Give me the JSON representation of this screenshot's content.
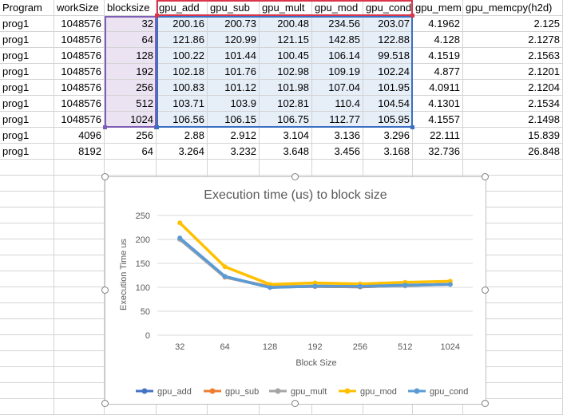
{
  "sheet": {
    "headers": [
      "Program",
      "workSize",
      "blocksize",
      "gpu_add",
      "gpu_sub",
      "gpu_mult",
      "gpu_mod",
      "gpu_cond",
      "gpu_mem",
      "gpu_memcpy(h2d)"
    ],
    "rows": [
      [
        "prog1",
        "1048576",
        "32",
        "200.16",
        "200.73",
        "200.48",
        "234.56",
        "203.07",
        "4.1962",
        "2.125"
      ],
      [
        "prog1",
        "1048576",
        "64",
        "121.86",
        "120.99",
        "121.15",
        "142.85",
        "122.88",
        "4.128",
        "2.1278"
      ],
      [
        "prog1",
        "1048576",
        "128",
        "100.22",
        "101.44",
        "100.45",
        "106.14",
        "99.518",
        "4.1519",
        "2.1563"
      ],
      [
        "prog1",
        "1048576",
        "192",
        "102.18",
        "101.76",
        "102.98",
        "109.19",
        "102.24",
        "4.877",
        "2.1201"
      ],
      [
        "prog1",
        "1048576",
        "256",
        "100.83",
        "101.12",
        "101.98",
        "107.04",
        "101.95",
        "4.0911",
        "2.1204"
      ],
      [
        "prog1",
        "1048576",
        "512",
        "103.71",
        "103.9",
        "102.81",
        "110.4",
        "104.54",
        "4.1301",
        "2.1534"
      ],
      [
        "prog1",
        "1048576",
        "1024",
        "106.56",
        "106.15",
        "106.75",
        "112.77",
        "105.95",
        "4.1557",
        "2.1498"
      ],
      [
        "prog1",
        "4096",
        "256",
        "2.88",
        "2.912",
        "3.104",
        "3.136",
        "3.296",
        "22.111",
        "15.839"
      ],
      [
        "prog1",
        "8192",
        "64",
        "3.264",
        "3.232",
        "3.648",
        "3.456",
        "3.168",
        "32.736",
        "26.848"
      ]
    ]
  },
  "chart_data": {
    "type": "line",
    "title": "Execution time (us) to block size",
    "xlabel": "Block Size",
    "ylabel": "Execution Time us",
    "categories": [
      "32",
      "64",
      "128",
      "192",
      "256",
      "512",
      "1024"
    ],
    "ylim": [
      0,
      250
    ],
    "yticks": [
      "0",
      "50",
      "100",
      "150",
      "200",
      "250"
    ],
    "grid": true,
    "legend_position": "bottom",
    "series": [
      {
        "name": "gpu_add",
        "color": "#4472c4",
        "values": [
          200.16,
          121.86,
          100.22,
          102.18,
          100.83,
          103.71,
          106.56
        ]
      },
      {
        "name": "gpu_sub",
        "color": "#ed7d31",
        "values": [
          200.73,
          120.99,
          101.44,
          101.76,
          101.12,
          103.9,
          106.15
        ]
      },
      {
        "name": "gpu_mult",
        "color": "#a5a5a5",
        "values": [
          200.48,
          121.15,
          100.45,
          102.98,
          101.98,
          102.81,
          106.75
        ]
      },
      {
        "name": "gpu_mod",
        "color": "#ffc000",
        "values": [
          234.56,
          142.85,
          106.14,
          109.19,
          107.04,
          110.4,
          112.77
        ]
      },
      {
        "name": "gpu_cond",
        "color": "#5b9bd5",
        "values": [
          203.07,
          122.88,
          99.518,
          102.24,
          101.95,
          104.54,
          105.95
        ]
      }
    ]
  }
}
